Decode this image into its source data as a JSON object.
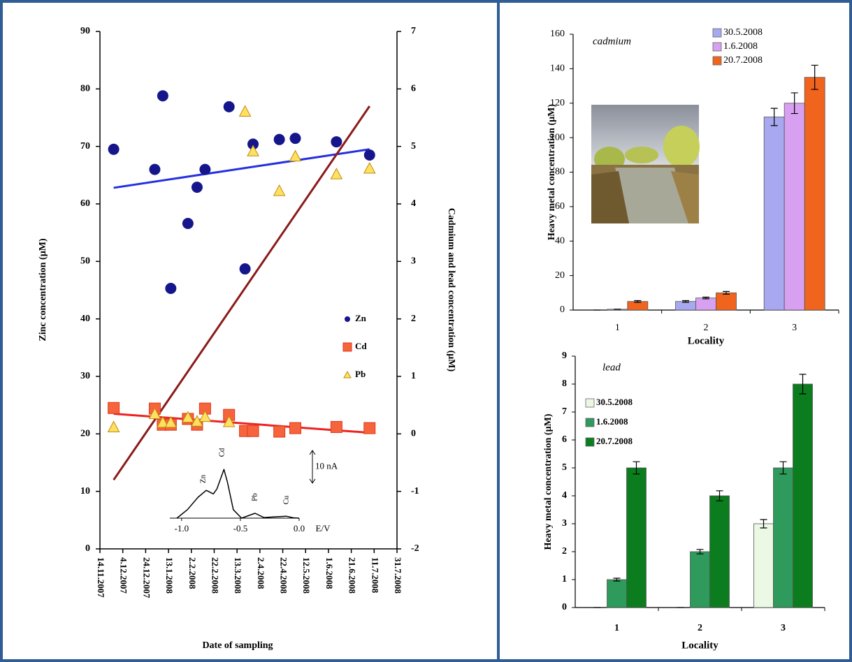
{
  "chart_data": [
    {
      "type": "scatter",
      "xlabel": "Date of sampling",
      "ylabel": "Zinc concentration (µM)",
      "y2label": "Cadmium and lead concentration (µM)",
      "x": [
        "26.11.2007",
        "1.1.2008",
        "8.1.2008",
        "15.1.2008",
        "30.1.2008",
        "7.2.2008",
        "14.2.2008",
        "6.3.2008",
        "20.3.2008",
        "27.3.2008",
        "19.4.2008",
        "3.5.2008",
        "8.6.2008",
        "7.7.2008"
      ],
      "xlim": [
        "14.11.2007",
        "31.7.2008"
      ],
      "xticks": [
        "14.11.2007",
        "4.12.2007",
        "24.12.2007",
        "13.1.2008",
        "2.2.2008",
        "22.2.2008",
        "13.3.2008",
        "2.4.2008",
        "22.4.2008",
        "12.5.2008",
        "1.6.2008",
        "21.6.2008",
        "11.7.2008",
        "31.7.2008"
      ],
      "ylim": [
        0,
        90
      ],
      "yticks": [
        0,
        10,
        20,
        30,
        40,
        50,
        60,
        70,
        80,
        90
      ],
      "y2lim": [
        -2,
        7
      ],
      "y2ticks": [
        -2,
        -1,
        0,
        1,
        2,
        3,
        4,
        5,
        6,
        7
      ],
      "series": [
        {
          "name": "Zn",
          "color": "#16168c",
          "marker": "circle",
          "values": [
            69.5,
            66.0,
            78.8,
            45.3,
            56.6,
            62.9,
            66.0,
            76.9,
            48.7,
            70.4,
            71.2,
            71.4,
            70.8,
            68.5
          ],
          "trend": {
            "x": [
              "26.11.2007",
              "7.7.2008"
            ],
            "values": [
              62.8,
              69.5
            ],
            "color": "#2430e0"
          }
        },
        {
          "name": "Cd",
          "color": "#f5643c",
          "marker": "square",
          "axis": "y2",
          "values": [
            0.45,
            0.44,
            0.16,
            0.16,
            0.26,
            0.16,
            0.44,
            0.33,
            0.05,
            0.05,
            0.04,
            0.1,
            0.12,
            0.1
          ],
          "trend": {
            "x": [
              "26.11.2007",
              "7.7.2008"
            ],
            "values": [
              0.35,
              0.02
            ],
            "color": "#ee2222"
          }
        },
        {
          "name": "Pb",
          "color": "#ffe060",
          "marker": "triangle",
          "axis": "y2",
          "values": [
            0.12,
            0.35,
            0.2,
            0.2,
            0.29,
            0.22,
            0.3,
            0.21,
            5.61,
            4.92,
            4.23,
            4.83,
            4.52,
            4.62
          ],
          "trend": {
            "x": [
              "26.11.2007",
              "7.7.2008"
            ],
            "values": [
              -0.8,
              5.7
            ],
            "color": "#8b1a1a"
          }
        }
      ]
    },
    {
      "type": "line",
      "x": [
        -1.04,
        -0.95,
        -0.86,
        -0.79,
        -0.73,
        -0.7,
        -0.64,
        -0.61,
        -0.56,
        -0.49,
        -0.375,
        -0.3,
        -0.11,
        -0.05,
        0
      ],
      "values": [
        0,
        2.6,
        6.4,
        8.5,
        7.4,
        8.9,
        14.9,
        11,
        2.6,
        0,
        1.5,
        0.2,
        0.6,
        0.1,
        0
      ],
      "color": "#000000",
      "xlim": [
        -1.1,
        0
      ],
      "ylim": [
        0,
        16
      ],
      "xticks": [
        {
          "value": -1,
          "label": "-1.0"
        },
        {
          "value": -0.5,
          "label": "-0.5"
        },
        {
          "value": 0,
          "label": "0.0"
        }
      ],
      "xlabel": "E/V",
      "scale_bar": {
        "value": 10,
        "label": "10 nA"
      },
      "annotations": [
        "Zn",
        "Cd",
        "Pb",
        "Cu"
      ]
    },
    {
      "type": "bar",
      "title": "cadmium",
      "categories": [
        "1",
        "2",
        "3"
      ],
      "xlabel": "Locality",
      "ylabel": "Heavy metal concentration (µM)",
      "ylim": [
        0,
        160
      ],
      "yticks": [
        0,
        20,
        40,
        60,
        80,
        100,
        120,
        140,
        160
      ],
      "series": [
        {
          "name": "30.5.2008",
          "color": "#a8a8f0",
          "values": [
            0,
            5,
            112
          ],
          "errors": [
            0,
            0.5,
            5
          ]
        },
        {
          "name": "1.6.2008",
          "color": "#d8a0f0",
          "values": [
            0.5,
            7,
            120
          ],
          "errors": [
            0,
            0.5,
            6
          ]
        },
        {
          "name": "20.7.2008",
          "color": "#f0641e",
          "values": [
            5,
            10,
            135
          ],
          "errors": [
            0.5,
            0.8,
            7
          ]
        }
      ]
    },
    {
      "type": "bar",
      "title": "lead",
      "categories": [
        "1",
        "2",
        "3"
      ],
      "xlabel": "Locality",
      "ylabel": "Heavy metal concentration (µM)",
      "ylim": [
        0,
        9
      ],
      "yticks": [
        0,
        1,
        2,
        3,
        4,
        5,
        6,
        7,
        8,
        9
      ],
      "series": [
        {
          "name": "30.5.2008",
          "color": "#eaf8e4",
          "values": [
            0,
            0,
            3
          ],
          "errors": [
            0,
            0,
            0.15
          ]
        },
        {
          "name": "1.6.2008",
          "color": "#2e9a5c",
          "values": [
            1,
            2,
            5
          ],
          "errors": [
            0.05,
            0.08,
            0.22
          ]
        },
        {
          "name": "20.7.2008",
          "color": "#0b7d1e",
          "values": [
            5,
            4,
            8
          ],
          "errors": [
            0.22,
            0.18,
            0.35
          ]
        }
      ]
    }
  ]
}
